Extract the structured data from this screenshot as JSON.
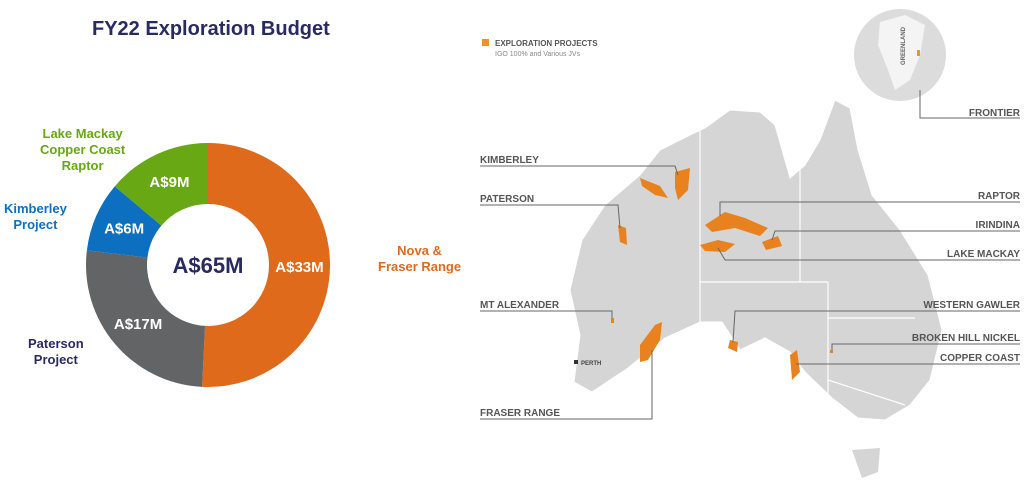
{
  "chart_data": {
    "type": "pie",
    "title": "FY22 Exploration Budget",
    "center_label": "A$65M",
    "total": 65,
    "unit": "A$M",
    "slices": [
      {
        "name": "Nova & Fraser Range",
        "value": 33,
        "label": "A$33M",
        "color": "#e06a1b"
      },
      {
        "name": "Paterson Project",
        "value": 17,
        "label": "A$17M",
        "color": "#636466"
      },
      {
        "name": "Kimberley Project",
        "value": 6,
        "label": "A$6M",
        "color": "#0c6fbf"
      },
      {
        "name": "Lake Mackay Copper Coast Raptor",
        "value": 9,
        "label": "A$9M",
        "color": "#67a814"
      }
    ]
  },
  "category_labels": {
    "nova": [
      "Nova &",
      "Fraser Range"
    ],
    "paterson": [
      "Paterson",
      "Project"
    ],
    "kimberley": [
      "Kimberley",
      "Project"
    ],
    "lake": [
      "Lake Mackay",
      "Copper Coast",
      "Raptor"
    ]
  },
  "map": {
    "legend_title": "EXPLORATION PROJECTS",
    "legend_subtitle": "IGO 100% and Various JVs",
    "legend_color": "#f0912a",
    "inset_label": "GREENLAND",
    "city": "PERTH",
    "projects": {
      "frontier": "FRONTIER",
      "kimberley": "KIMBERLEY",
      "paterson": "PATERSON",
      "raptor": "RAPTOR",
      "irindina": "IRINDINA",
      "lake_mackay": "LAKE MACKAY",
      "mt_alexander": "MT ALEXANDER",
      "western_gawler": "WESTERN GAWLER",
      "broken_hill": "BROKEN HILL NICKEL",
      "copper_coast": "COPPER COAST",
      "fraser_range": "FRASER RANGE"
    }
  }
}
